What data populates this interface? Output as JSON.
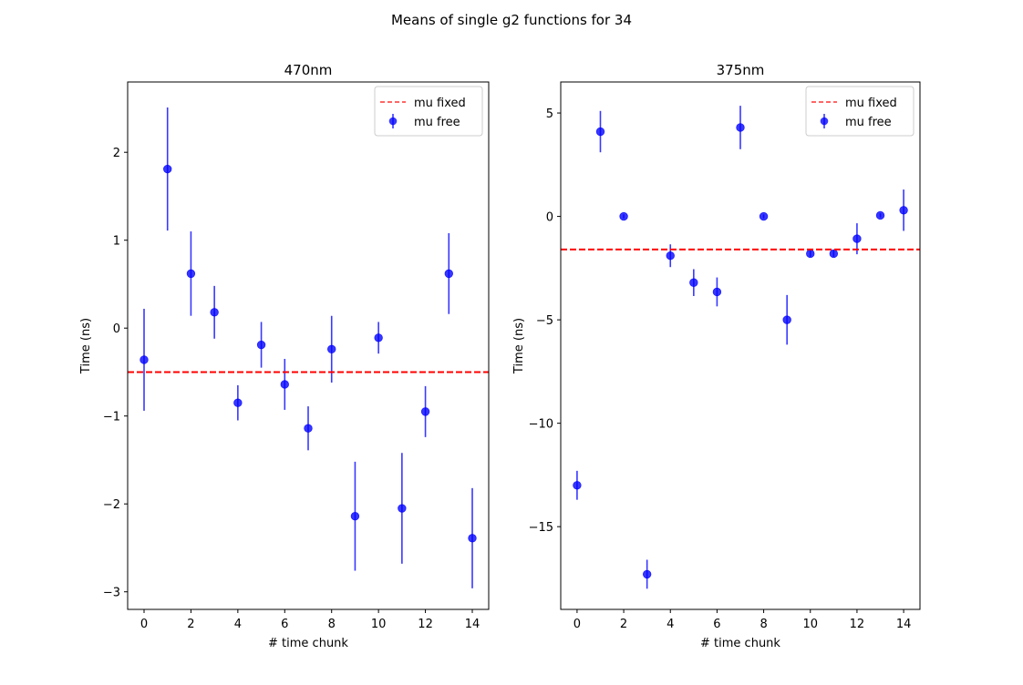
{
  "figure": {
    "suptitle": "Means of single g2 functions for 34"
  },
  "chart_data": [
    {
      "type": "scatter",
      "title": "470nm",
      "xlabel": "# time chunk",
      "ylabel": "Time (ns)",
      "xlim": [
        -0.7,
        14.7
      ],
      "ylim": [
        -3.2,
        2.8
      ],
      "xticks": [
        0,
        2,
        4,
        6,
        8,
        10,
        12,
        14
      ],
      "yticks": [
        -3,
        -2,
        -1,
        0,
        1,
        2
      ],
      "legend_position": "upper right",
      "series": [
        {
          "name": "mu free",
          "kind": "errorbar",
          "color": "#0000ff",
          "x": [
            0,
            1,
            2,
            3,
            4,
            5,
            6,
            7,
            8,
            9,
            10,
            11,
            12,
            13,
            14
          ],
          "y": [
            -0.36,
            1.81,
            0.62,
            0.18,
            -0.85,
            -0.19,
            -0.64,
            -1.14,
            -0.24,
            -2.14,
            -0.11,
            -2.05,
            -0.95,
            0.62,
            -2.39
          ],
          "yerr": [
            0.58,
            0.7,
            0.48,
            0.3,
            0.2,
            0.26,
            0.29,
            0.25,
            0.38,
            0.62,
            0.18,
            0.63,
            0.29,
            0.46,
            0.57
          ]
        },
        {
          "name": "mu fixed",
          "kind": "hline",
          "color": "#ff0000",
          "value": -0.5
        }
      ]
    },
    {
      "type": "scatter",
      "title": "375nm",
      "xlabel": "# time chunk",
      "ylabel": "Time (ns)",
      "xlim": [
        -0.7,
        14.7
      ],
      "ylim": [
        -19.0,
        6.5
      ],
      "xticks": [
        0,
        2,
        4,
        6,
        8,
        10,
        12,
        14
      ],
      "yticks": [
        -15,
        -10,
        -5,
        0,
        5
      ],
      "legend_position": "upper right",
      "series": [
        {
          "name": "mu free",
          "kind": "errorbar",
          "color": "#0000ff",
          "x": [
            0,
            1,
            2,
            3,
            4,
            5,
            6,
            7,
            8,
            9,
            10,
            11,
            12,
            13,
            14
          ],
          "y": [
            -13.0,
            4.1,
            0.0,
            -17.3,
            -1.9,
            -3.2,
            -3.65,
            4.3,
            0.0,
            -5.0,
            -1.8,
            -1.8,
            -1.08,
            0.05,
            0.3
          ],
          "yerr": [
            0.7,
            1.0,
            0.1,
            0.7,
            0.55,
            0.65,
            0.7,
            1.05,
            0.1,
            1.2,
            0.15,
            0.15,
            0.75,
            0.1,
            1.0
          ]
        },
        {
          "name": "mu fixed",
          "kind": "hline",
          "color": "#ff0000",
          "value": -1.6
        }
      ]
    }
  ]
}
